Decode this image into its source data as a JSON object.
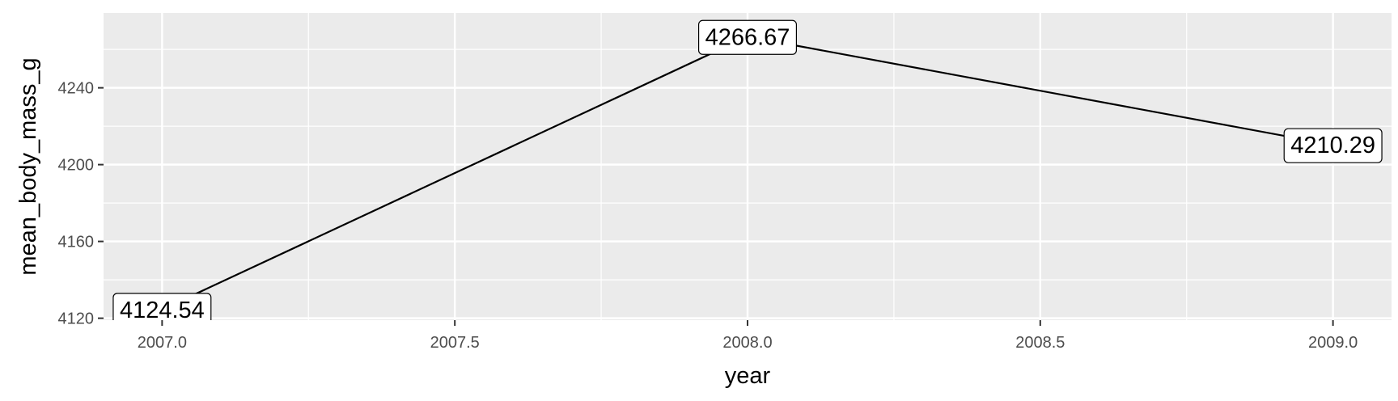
{
  "chart_data": {
    "type": "line",
    "title": "",
    "xlabel": "year",
    "ylabel": "mean_body_mass_g",
    "x": [
      2007,
      2008,
      2009
    ],
    "series": [
      {
        "values": [
          4124.54,
          4266.67,
          4210.29
        ]
      }
    ],
    "data_labels": [
      "4124.54",
      "4266.67",
      "4210.29"
    ],
    "xlim": [
      2006.9,
      2009.1
    ],
    "ylim": [
      4119,
      4279
    ],
    "x_ticks": [
      2007.0,
      2007.5,
      2008.0,
      2008.5,
      2009.0
    ],
    "x_tick_labels": [
      "2007.0",
      "2007.5",
      "2008.0",
      "2008.5",
      "2009.0"
    ],
    "y_ticks": [
      4120,
      4160,
      4200,
      4240
    ],
    "y_tick_labels": [
      "4120",
      "4160",
      "4200",
      "4240"
    ],
    "grid": true,
    "legend": "none",
    "colors": {
      "panel_background": "#ebebeb",
      "major_grid": "#ffffff",
      "line": "#000000",
      "label_fill": "#ffffff"
    }
  }
}
